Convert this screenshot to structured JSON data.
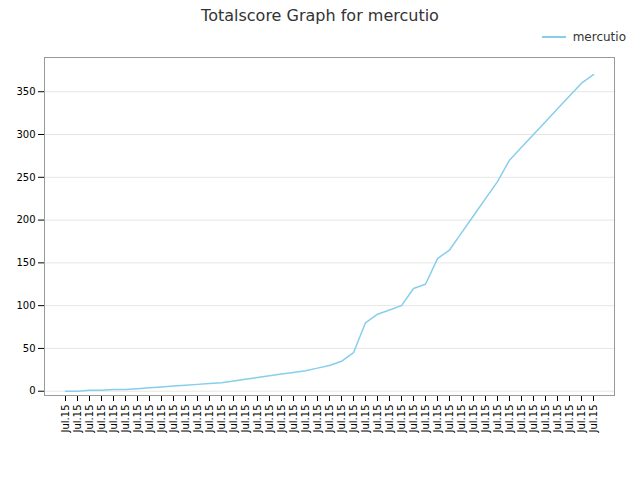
{
  "chart_data": {
    "type": "line",
    "title": "Totalscore Graph for mercutio",
    "categories": [
      "Jul.15",
      "Jul.15",
      "Jul.15",
      "Jul.15",
      "Jul.15",
      "Jul.15",
      "Jul.15",
      "Jul.15",
      "Jul.15",
      "Jul.15",
      "Jul.15",
      "Jul.15",
      "Jul.15",
      "Jul.15",
      "Jul.15",
      "Jul.15",
      "Jul.15",
      "Jul.15",
      "Jul.15",
      "Jul.15",
      "Jul.15",
      "Jul.15",
      "Jul.15",
      "Jul.15",
      "Jul.15",
      "Jul.15",
      "Jul.15",
      "Jul.15",
      "Jul.15",
      "Jul.15",
      "Jul.15",
      "Jul.15",
      "Jul.15",
      "Jul.15",
      "Jul.15",
      "Jul.15",
      "Jul.15",
      "Jul.15",
      "Jul.15",
      "Jul.15",
      "Jul.15",
      "Jul.15",
      "Jul.15",
      "Jul.15",
      "Jul.15"
    ],
    "series": [
      {
        "name": "mercutio",
        "color": "#87CEEB",
        "values": [
          0,
          0,
          1,
          1,
          2,
          2,
          3,
          4,
          5,
          6,
          7,
          8,
          9,
          10,
          12,
          14,
          16,
          18,
          20,
          22,
          24,
          27,
          30,
          35,
          45,
          80,
          90,
          95,
          100,
          120,
          125,
          155,
          165,
          185,
          205,
          225,
          245,
          270,
          285,
          300,
          315,
          330,
          345,
          360,
          370
        ]
      }
    ],
    "ylim": [
      -5,
      390
    ],
    "yticks": [
      0,
      50,
      100,
      150,
      200,
      250,
      300,
      350
    ],
    "grid": true,
    "legend": "upper right"
  }
}
